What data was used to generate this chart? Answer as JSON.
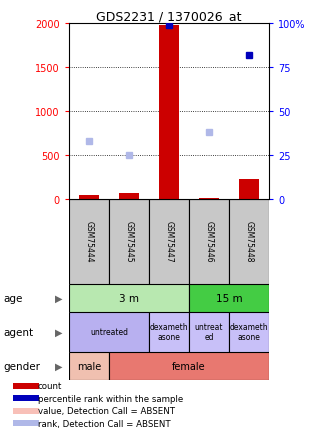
{
  "title": "GDS2231 / 1370026_at",
  "samples": [
    "GSM75444",
    "GSM75445",
    "GSM75447",
    "GSM75446",
    "GSM75448"
  ],
  "count_values": [
    40,
    60,
    1980,
    10,
    220
  ],
  "percentile_values": [
    null,
    null,
    99,
    null,
    82
  ],
  "rank_absent_values": [
    33,
    25,
    null,
    38,
    null
  ],
  "ylim_left": [
    0,
    2000
  ],
  "ylim_right": [
    0,
    100
  ],
  "left_ticks": [
    0,
    500,
    1000,
    1500,
    2000
  ],
  "right_ticks": [
    0,
    25,
    50,
    75,
    100
  ],
  "age_colors": {
    "3 m": "#b8e8b0",
    "15 m": "#44cc44"
  },
  "age_spans": [
    {
      "label": "3 m",
      "start": 0,
      "end": 3
    },
    {
      "label": "15 m",
      "start": 3,
      "end": 5
    }
  ],
  "agent_spans": [
    {
      "label": "untreated",
      "start": 0,
      "end": 2,
      "color": "#b8b0f0"
    },
    {
      "label": "dexameth\nasone",
      "start": 2,
      "end": 3,
      "color": "#c8c0f8"
    },
    {
      "label": "untreat\ned",
      "start": 3,
      "end": 4,
      "color": "#c8c0f8"
    },
    {
      "label": "dexameth\nasone",
      "start": 4,
      "end": 5,
      "color": "#c8c0f8"
    }
  ],
  "gender_spans": [
    {
      "label": "male",
      "start": 0,
      "end": 1,
      "color": "#f0c0b0"
    },
    {
      "label": "female",
      "start": 1,
      "end": 5,
      "color": "#e87870"
    }
  ],
  "bar_color_count": "#cc0000",
  "bar_color_percentile": "#0000bb",
  "color_rank_absent": "#b0b8e8",
  "color_value_absent": "#f8c0b8",
  "sample_box_color": "#c8c8c8",
  "legend_items": [
    {
      "color": "#cc0000",
      "label": "count"
    },
    {
      "color": "#0000bb",
      "label": "percentile rank within the sample"
    },
    {
      "color": "#f8c0b8",
      "label": "value, Detection Call = ABSENT"
    },
    {
      "color": "#b0b8e8",
      "label": "rank, Detection Call = ABSENT"
    }
  ]
}
